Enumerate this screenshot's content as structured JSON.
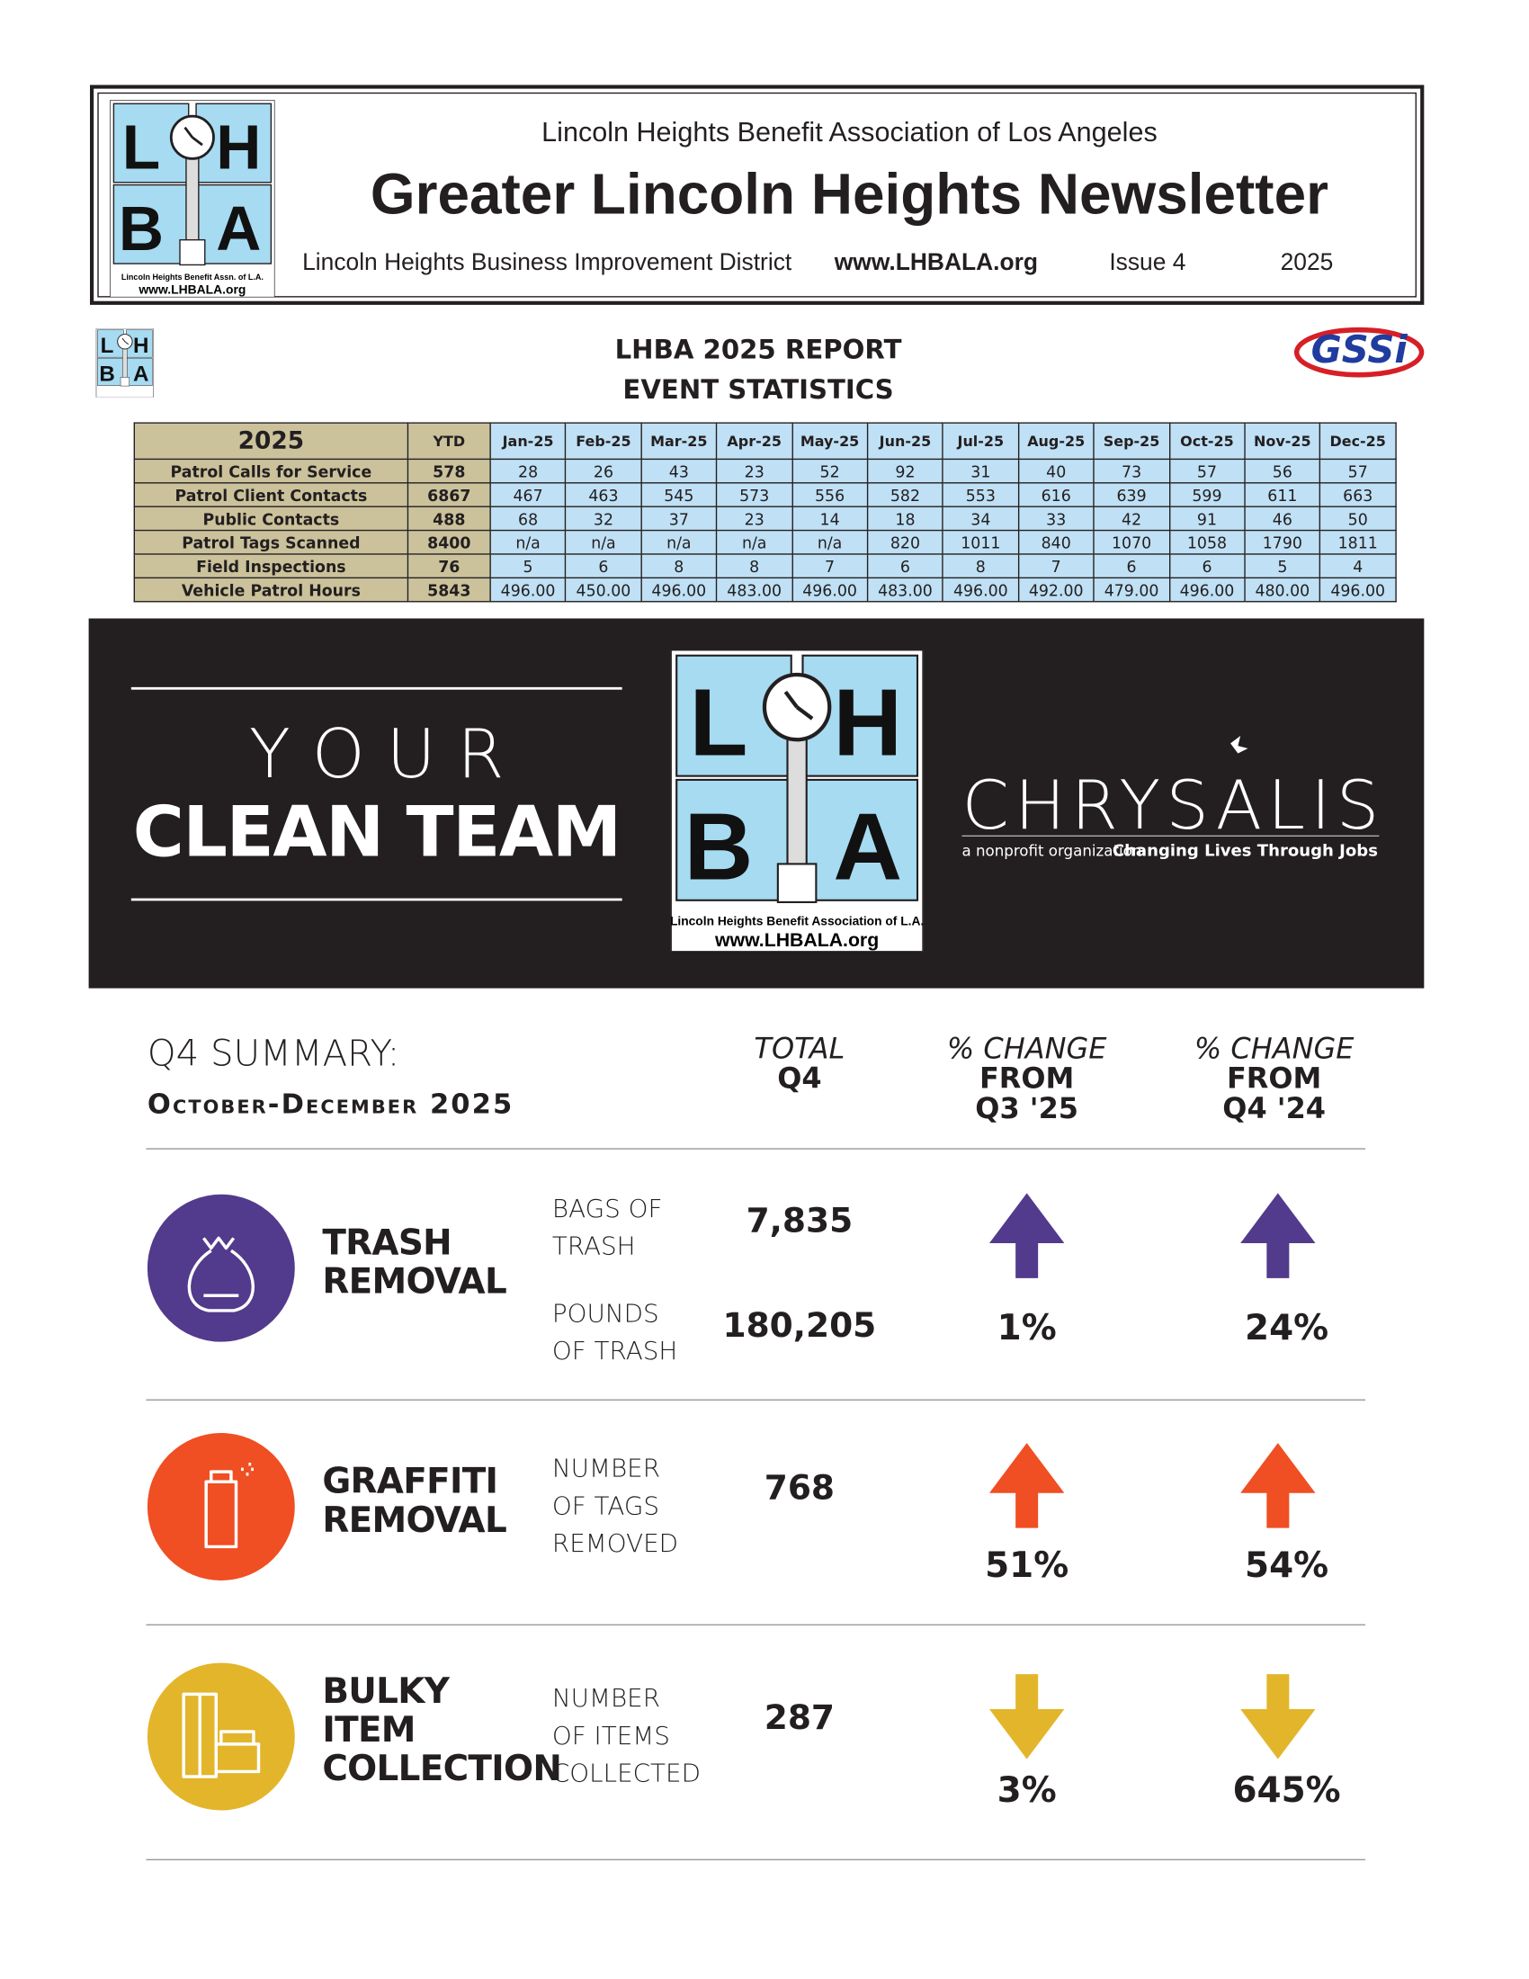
{
  "header": {
    "org": "Lincoln Heights Benefit Association of Los Angeles",
    "title": "Greater Lincoln Heights Newsletter",
    "district": "Lincoln Heights Business Improvement District",
    "url": "www.LHBALA.org",
    "issue": "Issue 4",
    "year": "2025",
    "logo": {
      "letters": [
        "L",
        "H",
        "B",
        "A"
      ],
      "caption": "Lincoln Heights Benefit Assn. of L.A.",
      "url": "www.LHBALA.org"
    }
  },
  "report": {
    "title": "LHBA 2025 REPORT",
    "subtitle": "EVENT STATISTICS",
    "sponsor": "GSSi",
    "table": {
      "columns": [
        "2025",
        "YTD",
        "Jan-25",
        "Feb-25",
        "Mar-25",
        "Apr-25",
        "May-25",
        "Jun-25",
        "Jul-25",
        "Aug-25",
        "Sep-25",
        "Oct-25",
        "Nov-25",
        "Dec-25"
      ],
      "rows": [
        [
          "Patrol Calls for Service",
          "578",
          "28",
          "26",
          "43",
          "23",
          "52",
          "92",
          "31",
          "40",
          "73",
          "57",
          "56",
          "57"
        ],
        [
          "Patrol Client Contacts",
          "6867",
          "467",
          "463",
          "545",
          "573",
          "556",
          "582",
          "553",
          "616",
          "639",
          "599",
          "611",
          "663"
        ],
        [
          "Public Contacts",
          "488",
          "68",
          "32",
          "37",
          "23",
          "14",
          "18",
          "34",
          "33",
          "42",
          "91",
          "46",
          "50"
        ],
        [
          "Patrol Tags Scanned",
          "8400",
          "n/a",
          "n/a",
          "n/a",
          "n/a",
          "n/a",
          "820",
          "1011",
          "840",
          "1070",
          "1058",
          "1790",
          "1811"
        ],
        [
          "Field Inspections",
          "76",
          "5",
          "6",
          "8",
          "8",
          "7",
          "6",
          "8",
          "7",
          "6",
          "6",
          "5",
          "4"
        ],
        [
          "Vehicle Patrol Hours",
          "5843",
          "496.00",
          "450.00",
          "496.00",
          "483.00",
          "496.00",
          "483.00",
          "496.00",
          "492.00",
          "479.00",
          "496.00",
          "480.00",
          "496.00"
        ]
      ]
    }
  },
  "banner": {
    "your": "Y O U R",
    "clean_team": "CLEAN TEAM",
    "logo": {
      "letters": [
        "L",
        "H",
        "B",
        "A"
      ],
      "caption": "Lincoln Heights Benefit Association of L.A.",
      "url": "www.LHBALA.org"
    },
    "partner": "CHRYSALIS",
    "partner_note": "a nonprofit organization",
    "partner_tagline": "Changing Lives Through Jobs"
  },
  "summary": {
    "title": "Q4 SUMMARY:",
    "period": "October-December 2025",
    "headings": [
      [
        "TOTAL",
        "Q4"
      ],
      [
        "% CHANGE",
        "FROM",
        "Q3 '25"
      ],
      [
        "% CHANGE",
        "FROM",
        "Q4 '24"
      ]
    ],
    "rows": [
      {
        "title": "TRASH\nREMOVAL",
        "color": "#523a8c",
        "direction": "up",
        "metrics": [
          {
            "label": "BAGS OF\nTRASH",
            "value": "7,835"
          },
          {
            "label": "POUNDS\nOF TRASH",
            "value": "180,205"
          }
        ],
        "changes": [
          "1%",
          "24%"
        ]
      },
      {
        "title": "GRAFFITI\nREMOVAL",
        "color": "#f04e23",
        "direction": "up",
        "metrics": [
          {
            "label": "NUMBER\nOF TAGS\nREMOVED",
            "value": "768"
          }
        ],
        "changes": [
          "51%",
          "54%"
        ]
      },
      {
        "title": "BULKY\nITEM\nCOLLECTION",
        "color": "#e3b52a",
        "direction": "down",
        "metrics": [
          {
            "label": "NUMBER\nOF ITEMS\nCOLLECTED",
            "value": "287"
          }
        ],
        "changes": [
          "3%",
          "645%"
        ]
      }
    ]
  }
}
